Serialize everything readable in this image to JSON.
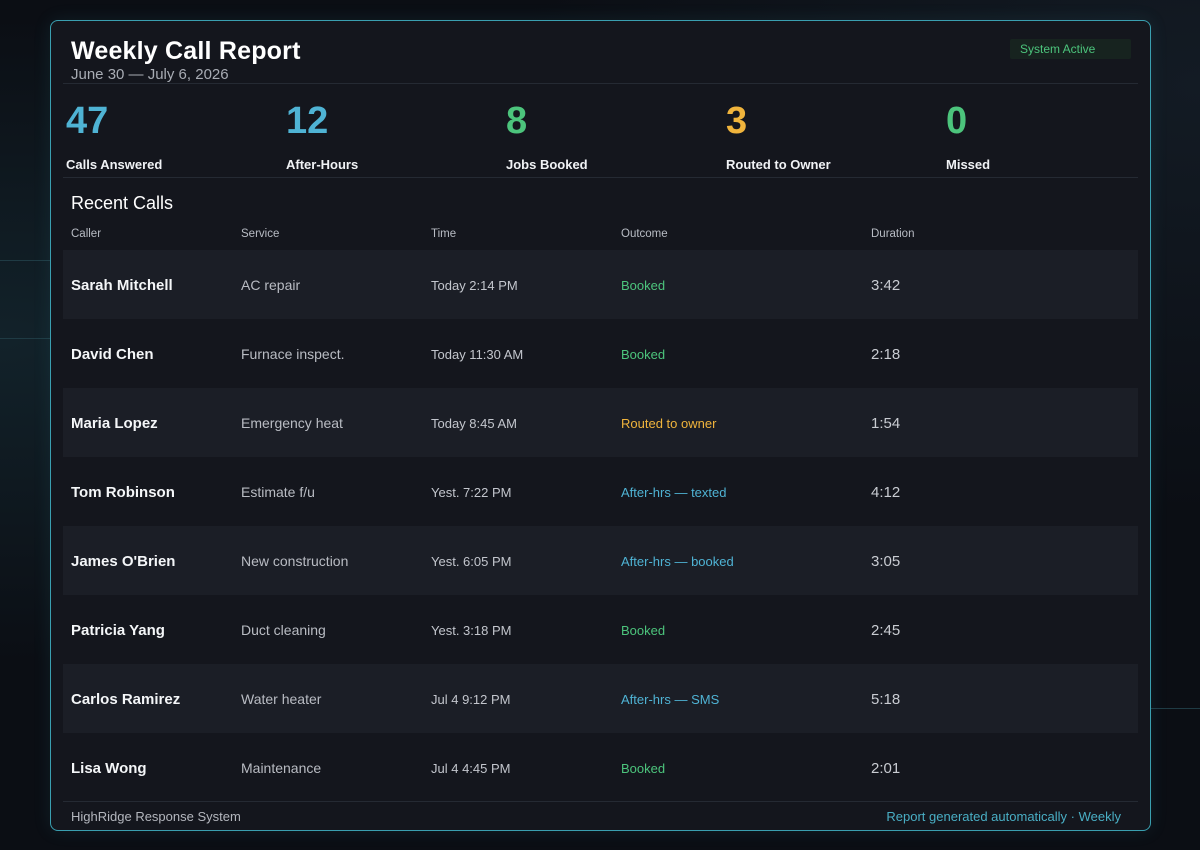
{
  "report": {
    "title": "Weekly Call Report",
    "date_range": "June 30 — July 6, 2026",
    "status_badge": "System Active"
  },
  "stats": [
    {
      "value": "47",
      "label": "Calls Answered",
      "color": "#4fb3d4"
    },
    {
      "value": "12",
      "label": "After-Hours",
      "color": "#4fb3d4"
    },
    {
      "value": "8",
      "label": "Jobs Booked",
      "color": "#4cc47c"
    },
    {
      "value": "3",
      "label": "Routed to Owner",
      "color": "#f0b43c"
    },
    {
      "value": "0",
      "label": "Missed",
      "color": "#4cc47c"
    }
  ],
  "recent_calls": {
    "title": "Recent Calls",
    "columns": [
      "Caller",
      "Service",
      "Time",
      "Outcome",
      "Duration"
    ],
    "rows": [
      {
        "caller": "Sarah Mitchell",
        "service": "AC repair",
        "time": "Today 2:14 PM",
        "outcome": "Booked",
        "outcome_color": "#4cc47c",
        "duration": "3:42"
      },
      {
        "caller": "David Chen",
        "service": "Furnace inspect.",
        "time": "Today 11:30 AM",
        "outcome": "Booked",
        "outcome_color": "#4cc47c",
        "duration": "2:18"
      },
      {
        "caller": "Maria Lopez",
        "service": "Emergency heat",
        "time": "Today 8:45 AM",
        "outcome": "Routed to owner",
        "outcome_color": "#f0b43c",
        "duration": "1:54"
      },
      {
        "caller": "Tom Robinson",
        "service": "Estimate f/u",
        "time": "Yest. 7:22 PM",
        "outcome": "After-hrs — texted",
        "outcome_color": "#4fb3d4",
        "duration": "4:12"
      },
      {
        "caller": "James O'Brien",
        "service": "New construction",
        "time": "Yest. 6:05 PM",
        "outcome": "After-hrs — booked",
        "outcome_color": "#4fb3d4",
        "duration": "3:05"
      },
      {
        "caller": "Patricia Yang",
        "service": "Duct cleaning",
        "time": "Yest. 3:18 PM",
        "outcome": "Booked",
        "outcome_color": "#4cc47c",
        "duration": "2:45"
      },
      {
        "caller": "Carlos Ramirez",
        "service": "Water heater",
        "time": "Jul 4 9:12 PM",
        "outcome": "After-hrs — SMS",
        "outcome_color": "#4fb3d4",
        "duration": "5:18"
      },
      {
        "caller": "Lisa Wong",
        "service": "Maintenance",
        "time": "Jul 4 4:45 PM",
        "outcome": "Booked",
        "outcome_color": "#4cc47c",
        "duration": "2:01"
      }
    ]
  },
  "footer": {
    "system_name": "HighRidge Response System",
    "note": "Report generated automatically · Weekly"
  }
}
